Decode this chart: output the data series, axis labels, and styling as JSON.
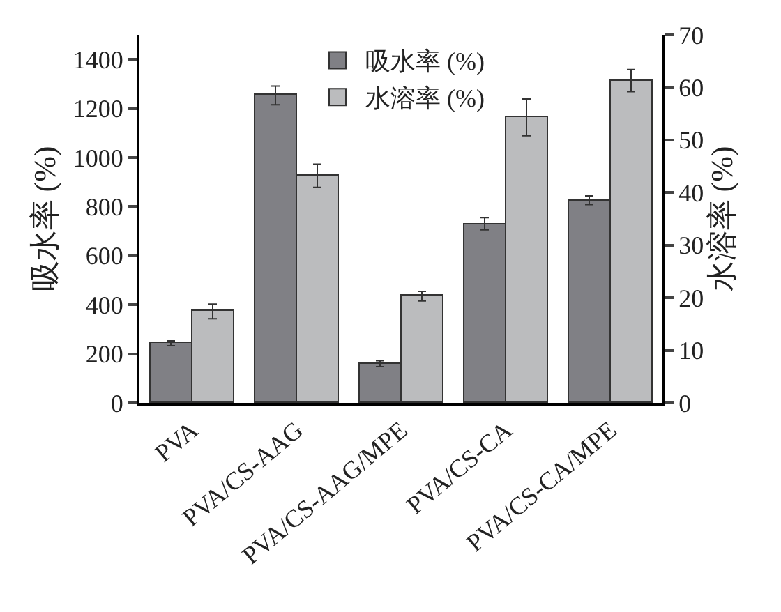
{
  "chart_data": {
    "type": "bar",
    "categories": [
      "PVA",
      "PVA/CS-AAG",
      "PVA/CS-AAG/MPE",
      "PVA/CS-CA",
      "PVA/CS-CA/MPE"
    ],
    "ylabel": "吸水率 (%)",
    "y2label": "水溶率 (%)",
    "series": [
      {
        "name": "吸水率 (%)",
        "color": "#808085",
        "values": [
          243,
          1253,
          160,
          730,
          826
        ],
        "errors": [
          10,
          38,
          12,
          25,
          18
        ]
      },
      {
        "name": "水溶率 (%)",
        "color": "#bbbcbe",
        "axis": "y2",
        "values": [
          17.4,
          43.2,
          20.3,
          54.3,
          61.3
        ],
        "errors": [
          1.4,
          2.2,
          0.9,
          3.5,
          2.1
        ]
      }
    ],
    "ylim": [
      0,
      1500
    ],
    "yticks": [
      0,
      200,
      400,
      600,
      800,
      1000,
      1200,
      1400
    ],
    "y2lim": [
      0,
      70
    ],
    "y2ticks": [
      0,
      10,
      20,
      30,
      40,
      50,
      60,
      70
    ],
    "grid": false,
    "legend": "top"
  }
}
